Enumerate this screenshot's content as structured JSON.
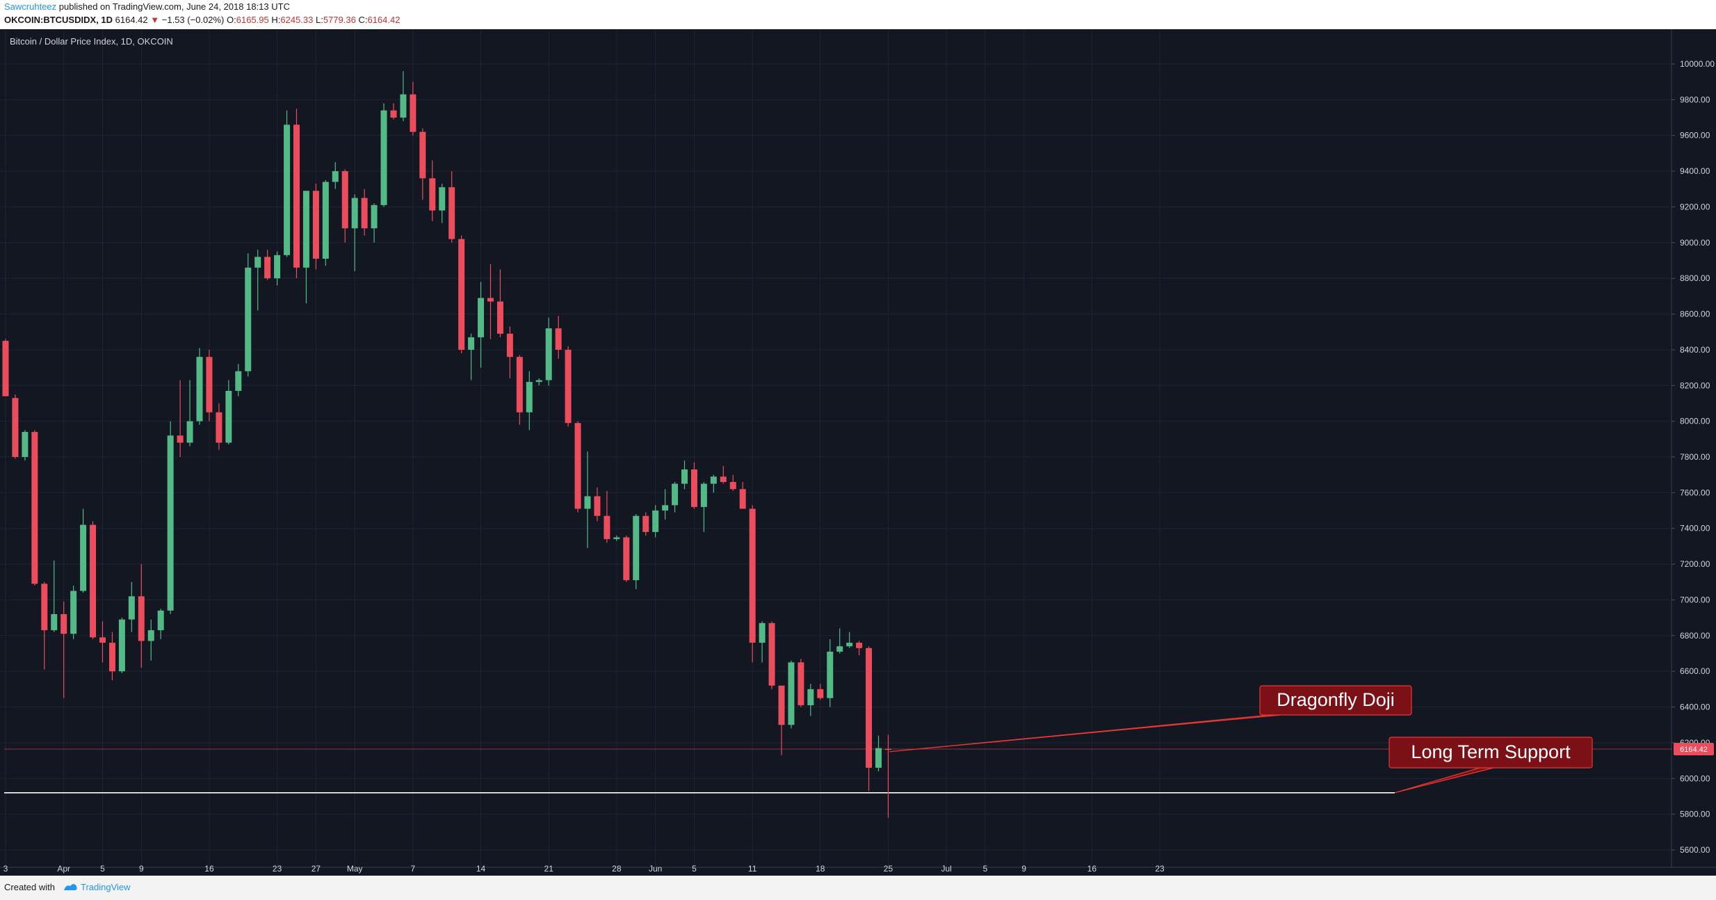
{
  "header": {
    "author": "Sawcruhteez",
    "published_text": " published on TradingView.com, June 24, 2018 18:13 UTC",
    "symbol": "OKCOIN:BTCUSDIDX, 1D",
    "last": "6164.42",
    "change_arrow": "▼",
    "change": "−1.53 (−0.02%)",
    "o_label": "O:",
    "o_val": "6165.95",
    "h_label": "H:",
    "h_val": "6245.33",
    "l_label": "L:",
    "l_val": "5779.36",
    "c_label": "C:",
    "c_val": "6164.42"
  },
  "footer": {
    "created_with": "Created with",
    "brand": "TradingView"
  },
  "colors": {
    "background": "#131722",
    "grid": "#1f2432",
    "up": "#53b987",
    "down": "#eb4d5c",
    "annotation_bg": "#7b1016",
    "annotation_border": "#e53935",
    "support_line": "#ffffff",
    "axis_text": "#d1d4dc"
  },
  "chart_data": {
    "type": "candlestick",
    "title": "Bitcoin / Dollar Price Index, 1D, OKCOIN",
    "interval": "1D",
    "ylim": [
      5540,
      10150
    ],
    "y_ticks": [
      "5600.00",
      "5800.00",
      "6000.00",
      "6200.00",
      "6400.00",
      "6600.00",
      "6800.00",
      "7000.00",
      "7200.00",
      "7400.00",
      "7600.00",
      "7800.00",
      "8000.00",
      "8200.00",
      "8400.00",
      "8600.00",
      "8800.00",
      "9000.00",
      "9200.00",
      "9400.00",
      "9600.00",
      "9800.00",
      "10000.00"
    ],
    "x_ticks": [
      {
        "label": "3",
        "index": 0
      },
      {
        "label": "Apr",
        "index": 6
      },
      {
        "label": "5",
        "index": 10
      },
      {
        "label": "9",
        "index": 14
      },
      {
        "label": "16",
        "index": 21
      },
      {
        "label": "23",
        "index": 28
      },
      {
        "label": "27",
        "index": 32
      },
      {
        "label": "May",
        "index": 36
      },
      {
        "label": "7",
        "index": 42
      },
      {
        "label": "14",
        "index": 49
      },
      {
        "label": "21",
        "index": 56
      },
      {
        "label": "28",
        "index": 63
      },
      {
        "label": "Jun",
        "index": 67
      },
      {
        "label": "5",
        "index": 71
      },
      {
        "label": "11",
        "index": 77
      },
      {
        "label": "18",
        "index": 84
      },
      {
        "label": "25",
        "index": 91
      },
      {
        "label": "Jul",
        "index": 97
      },
      {
        "label": "5",
        "index": 101
      },
      {
        "label": "9",
        "index": 105
      },
      {
        "label": "16",
        "index": 112
      },
      {
        "label": "23",
        "index": 119
      }
    ],
    "candles": [
      {
        "o": 8450,
        "h": 8460,
        "l": 8140,
        "c": 8140
      },
      {
        "o": 8130,
        "h": 8150,
        "l": 7790,
        "c": 7800
      },
      {
        "o": 7800,
        "h": 7950,
        "l": 7780,
        "c": 7940
      },
      {
        "o": 7940,
        "h": 7950,
        "l": 7080,
        "c": 7090
      },
      {
        "o": 7090,
        "h": 7100,
        "l": 6610,
        "c": 6830
      },
      {
        "o": 6830,
        "h": 7220,
        "l": 6820,
        "c": 6920
      },
      {
        "o": 6920,
        "h": 6990,
        "l": 6450,
        "c": 6810
      },
      {
        "o": 6810,
        "h": 7080,
        "l": 6780,
        "c": 7050
      },
      {
        "o": 7050,
        "h": 7510,
        "l": 7040,
        "c": 7420
      },
      {
        "o": 7420,
        "h": 7440,
        "l": 6780,
        "c": 6790
      },
      {
        "o": 6790,
        "h": 6880,
        "l": 6650,
        "c": 6760
      },
      {
        "o": 6760,
        "h": 6820,
        "l": 6550,
        "c": 6600
      },
      {
        "o": 6600,
        "h": 6900,
        "l": 6590,
        "c": 6890
      },
      {
        "o": 6890,
        "h": 7100,
        "l": 6820,
        "c": 7020
      },
      {
        "o": 7020,
        "h": 7200,
        "l": 6620,
        "c": 6770
      },
      {
        "o": 6770,
        "h": 6890,
        "l": 6660,
        "c": 6830
      },
      {
        "o": 6830,
        "h": 6950,
        "l": 6780,
        "c": 6940
      },
      {
        "o": 6940,
        "h": 8000,
        "l": 6920,
        "c": 7920
      },
      {
        "o": 7920,
        "h": 8230,
        "l": 7800,
        "c": 7880
      },
      {
        "o": 7880,
        "h": 8230,
        "l": 7860,
        "c": 8000
      },
      {
        "o": 8000,
        "h": 8410,
        "l": 7980,
        "c": 8360
      },
      {
        "o": 8360,
        "h": 8400,
        "l": 8000,
        "c": 8050
      },
      {
        "o": 8050,
        "h": 8100,
        "l": 7840,
        "c": 7880
      },
      {
        "o": 7880,
        "h": 8230,
        "l": 7870,
        "c": 8170
      },
      {
        "o": 8170,
        "h": 8320,
        "l": 8140,
        "c": 8280
      },
      {
        "o": 8280,
        "h": 8940,
        "l": 8250,
        "c": 8860
      },
      {
        "o": 8860,
        "h": 8960,
        "l": 8620,
        "c": 8920
      },
      {
        "o": 8920,
        "h": 8960,
        "l": 8790,
        "c": 8800
      },
      {
        "o": 8800,
        "h": 8950,
        "l": 8760,
        "c": 8930
      },
      {
        "o": 8930,
        "h": 9740,
        "l": 8920,
        "c": 9660
      },
      {
        "o": 9660,
        "h": 9750,
        "l": 8800,
        "c": 8860
      },
      {
        "o": 8860,
        "h": 9280,
        "l": 8660,
        "c": 9290
      },
      {
        "o": 9290,
        "h": 9330,
        "l": 8850,
        "c": 8910
      },
      {
        "o": 8910,
        "h": 9350,
        "l": 8870,
        "c": 9340
      },
      {
        "o": 9340,
        "h": 9450,
        "l": 9300,
        "c": 9400
      },
      {
        "o": 9400,
        "h": 9410,
        "l": 9000,
        "c": 9080
      },
      {
        "o": 9080,
        "h": 9270,
        "l": 8840,
        "c": 9250
      },
      {
        "o": 9250,
        "h": 9300,
        "l": 9040,
        "c": 9080
      },
      {
        "o": 9080,
        "h": 9220,
        "l": 9000,
        "c": 9210
      },
      {
        "o": 9210,
        "h": 9780,
        "l": 9200,
        "c": 9740
      },
      {
        "o": 9740,
        "h": 9780,
        "l": 9690,
        "c": 9700
      },
      {
        "o": 9700,
        "h": 9960,
        "l": 9680,
        "c": 9830
      },
      {
        "o": 9830,
        "h": 9900,
        "l": 9600,
        "c": 9620
      },
      {
        "o": 9620,
        "h": 9640,
        "l": 9240,
        "c": 9360
      },
      {
        "o": 9360,
        "h": 9460,
        "l": 9120,
        "c": 9180
      },
      {
        "o": 9180,
        "h": 9330,
        "l": 9110,
        "c": 9310
      },
      {
        "o": 9310,
        "h": 9400,
        "l": 9000,
        "c": 9020
      },
      {
        "o": 9020,
        "h": 9040,
        "l": 8380,
        "c": 8400
      },
      {
        "o": 8400,
        "h": 8490,
        "l": 8230,
        "c": 8470
      },
      {
        "o": 8470,
        "h": 8780,
        "l": 8300,
        "c": 8690
      },
      {
        "o": 8690,
        "h": 8880,
        "l": 8460,
        "c": 8670
      },
      {
        "o": 8670,
        "h": 8850,
        "l": 8470,
        "c": 8490
      },
      {
        "o": 8490,
        "h": 8530,
        "l": 8240,
        "c": 8360
      },
      {
        "o": 8360,
        "h": 8370,
        "l": 7980,
        "c": 8050
      },
      {
        "o": 8050,
        "h": 8280,
        "l": 7950,
        "c": 8220
      },
      {
        "o": 8220,
        "h": 8240,
        "l": 8200,
        "c": 8230
      },
      {
        "o": 8230,
        "h": 8580,
        "l": 8200,
        "c": 8520
      },
      {
        "o": 8520,
        "h": 8590,
        "l": 8350,
        "c": 8400
      },
      {
        "o": 8400,
        "h": 8420,
        "l": 7970,
        "c": 7990
      },
      {
        "o": 7990,
        "h": 8000,
        "l": 7490,
        "c": 7510
      },
      {
        "o": 7510,
        "h": 7830,
        "l": 7290,
        "c": 7580
      },
      {
        "o": 7580,
        "h": 7630,
        "l": 7440,
        "c": 7470
      },
      {
        "o": 7470,
        "h": 7610,
        "l": 7320,
        "c": 7340
      },
      {
        "o": 7340,
        "h": 7360,
        "l": 7330,
        "c": 7350
      },
      {
        "o": 7350,
        "h": 7360,
        "l": 7100,
        "c": 7110
      },
      {
        "o": 7110,
        "h": 7480,
        "l": 7060,
        "c": 7470
      },
      {
        "o": 7470,
        "h": 7490,
        "l": 7360,
        "c": 7380
      },
      {
        "o": 7380,
        "h": 7530,
        "l": 7350,
        "c": 7500
      },
      {
        "o": 7500,
        "h": 7620,
        "l": 7450,
        "c": 7530
      },
      {
        "o": 7530,
        "h": 7660,
        "l": 7490,
        "c": 7650
      },
      {
        "o": 7650,
        "h": 7780,
        "l": 7620,
        "c": 7730
      },
      {
        "o": 7730,
        "h": 7770,
        "l": 7510,
        "c": 7520
      },
      {
        "o": 7520,
        "h": 7660,
        "l": 7380,
        "c": 7650
      },
      {
        "o": 7650,
        "h": 7700,
        "l": 7600,
        "c": 7690
      },
      {
        "o": 7690,
        "h": 7750,
        "l": 7650,
        "c": 7660
      },
      {
        "o": 7660,
        "h": 7700,
        "l": 7610,
        "c": 7620
      },
      {
        "o": 7620,
        "h": 7660,
        "l": 7510,
        "c": 7510
      },
      {
        "o": 7510,
        "h": 7530,
        "l": 6650,
        "c": 6760
      },
      {
        "o": 6760,
        "h": 6880,
        "l": 6650,
        "c": 6870
      },
      {
        "o": 6870,
        "h": 6880,
        "l": 6500,
        "c": 6520
      },
      {
        "o": 6520,
        "h": 6520,
        "l": 6130,
        "c": 6300
      },
      {
        "o": 6300,
        "h": 6660,
        "l": 6280,
        "c": 6650
      },
      {
        "o": 6650,
        "h": 6670,
        "l": 6400,
        "c": 6410
      },
      {
        "o": 6410,
        "h": 6530,
        "l": 6350,
        "c": 6500
      },
      {
        "o": 6500,
        "h": 6530,
        "l": 6440,
        "c": 6450
      },
      {
        "o": 6450,
        "h": 6780,
        "l": 6400,
        "c": 6710
      },
      {
        "o": 6710,
        "h": 6840,
        "l": 6700,
        "c": 6740
      },
      {
        "o": 6740,
        "h": 6820,
        "l": 6730,
        "c": 6760
      },
      {
        "o": 6760,
        "h": 6770,
        "l": 6690,
        "c": 6730
      },
      {
        "o": 6730,
        "h": 6740,
        "l": 5930,
        "c": 6060
      },
      {
        "o": 6060,
        "h": 6240,
        "l": 6040,
        "c": 6170
      },
      {
        "o": 6165.95,
        "h": 6245.33,
        "l": 5779.36,
        "c": 6164.42
      }
    ],
    "current_price_label": "6164.42",
    "support_level": 5920,
    "annotations": [
      {
        "text": "Dragonfly Doji"
      },
      {
        "text": "Long Term Support"
      }
    ]
  }
}
